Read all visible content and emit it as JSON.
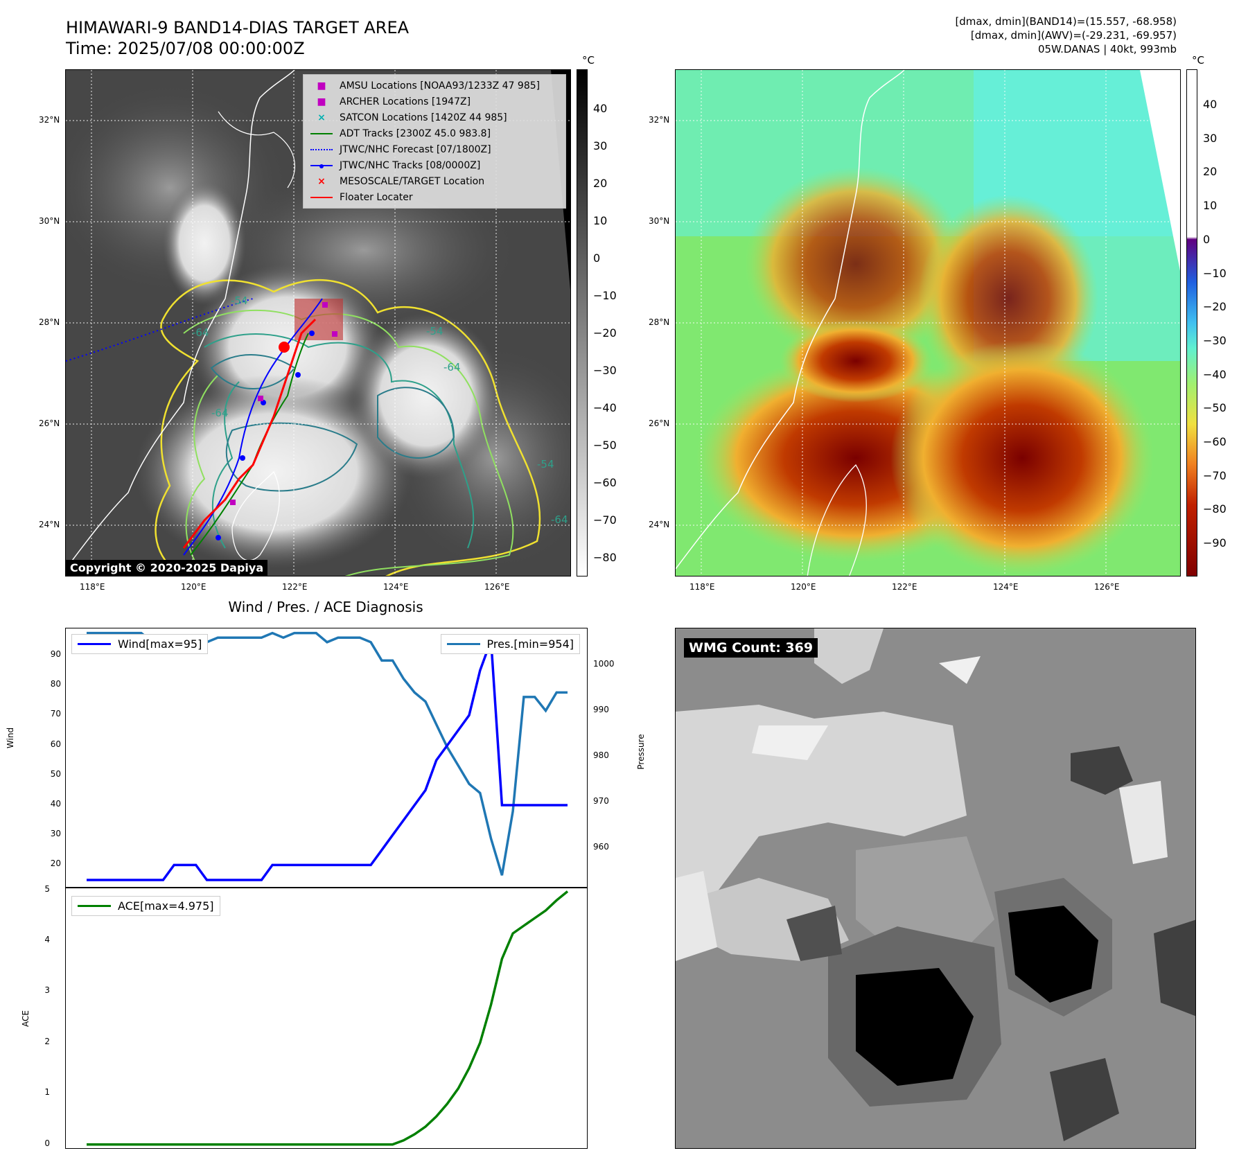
{
  "header": {
    "title_line1": "HIMAWARI-9 BAND14-DIAS TARGET AREA",
    "title_line2": "Time: 2025/07/08 00:00:00Z",
    "info_line1": "[dmax, dmin](BAND14)=(15.557, -68.958)",
    "info_line2": "[dmax, dmin](AWV)=(-29.231, -69.957)",
    "info_line3": "05W.DANAS | 40kt, 993mb"
  },
  "map_axes": {
    "lat_labels": [
      "32°N",
      "30°N",
      "28°N",
      "26°N",
      "24°N"
    ],
    "lon_labels": [
      "118°E",
      "120°E",
      "122°E",
      "124°E",
      "126°E"
    ]
  },
  "ir_panel": {
    "legend": [
      {
        "label": "AMSU Locations [NOAA93/1233Z 47 985]",
        "symbol": "square",
        "color": "#c000c0"
      },
      {
        "label": "ARCHER Locations [1947Z]",
        "symbol": "square",
        "color": "#c000c0"
      },
      {
        "label": "SATCON Locations [1420Z 44 985]",
        "symbol": "x",
        "color": "#00b0b0"
      },
      {
        "label": "ADT Tracks [2300Z 45.0 983.8]",
        "symbol": "line",
        "color": "#008000"
      },
      {
        "label": "JTWC/NHC Forecast [07/1800Z]",
        "symbol": "dotted",
        "color": "#0000ff"
      },
      {
        "label": "JTWC/NHC Tracks [08/0000Z]",
        "symbol": "line-dot",
        "color": "#0000ff"
      },
      {
        "label": "MESOSCALE/TARGET Location",
        "symbol": "x",
        "color": "#ff0000"
      },
      {
        "label": "Floater Locater",
        "symbol": "line",
        "color": "#ff0000"
      }
    ],
    "contour_labels": [
      "-54",
      "-64",
      "-54",
      "-64",
      "-64",
      "-54",
      "-64"
    ],
    "copyright": "Copyright © 2020-2025 Dapiya",
    "colorbar_unit": "°C",
    "colorbar_ticks": [
      "40",
      "30",
      "20",
      "10",
      "0",
      "−10",
      "−20",
      "−30",
      "−40",
      "−50",
      "−60",
      "−70",
      "−80"
    ]
  },
  "wv_panel": {
    "colorbar_unit": "°C",
    "colorbar_ticks": [
      "40",
      "30",
      "20",
      "10",
      "0",
      "−10",
      "−20",
      "−30",
      "−40",
      "−50",
      "−60",
      "−70",
      "−80",
      "−90"
    ]
  },
  "chart_data": [
    {
      "type": "line",
      "title": "Wind / Pres. / ACE Diagnosis",
      "ylabel": "Wind",
      "ylabel_right": "Pressure",
      "ylim": [
        12,
        99
      ],
      "ylim_right": [
        951,
        1008
      ],
      "yticks": [
        "90",
        "80",
        "70",
        "60",
        "50",
        "40",
        "30",
        "20"
      ],
      "yticks_right": [
        "1000",
        "990",
        "980",
        "970",
        "960"
      ],
      "series": [
        {
          "name": "Wind[max=95]",
          "axis": "left",
          "color": "#0000ff",
          "values": [
            15,
            15,
            15,
            15,
            15,
            15,
            15,
            15,
            20,
            20,
            20,
            15,
            15,
            15,
            15,
            15,
            15,
            20,
            20,
            20,
            20,
            20,
            20,
            20,
            20,
            20,
            20,
            25,
            30,
            35,
            40,
            45,
            55,
            60,
            65,
            70,
            85,
            95,
            40,
            40,
            40,
            40,
            40,
            40,
            40
          ]
        },
        {
          "name": "Pres.[min=954]",
          "axis": "right",
          "color": "#1f77b4",
          "values": [
            1007,
            1007,
            1007,
            1007,
            1007,
            1007,
            1005,
            1005,
            1005,
            1005,
            1005,
            1005,
            1006,
            1006,
            1006,
            1006,
            1006,
            1007,
            1006,
            1007,
            1007,
            1007,
            1005,
            1006,
            1006,
            1006,
            1005,
            1001,
            1001,
            997,
            994,
            992,
            987,
            982,
            978,
            974,
            972,
            962,
            954,
            968,
            993,
            993,
            990,
            994,
            994
          ]
        }
      ]
    },
    {
      "type": "line",
      "ylabel": "ACE",
      "ylim": [
        -0.1,
        5.05
      ],
      "yticks": [
        "5",
        "4",
        "3",
        "2",
        "1",
        "0"
      ],
      "series": [
        {
          "name": "ACE[max=4.975]",
          "color": "#008000",
          "values": [
            0,
            0,
            0,
            0,
            0,
            0,
            0,
            0,
            0,
            0,
            0,
            0,
            0,
            0,
            0,
            0,
            0,
            0,
            0,
            0,
            0,
            0,
            0,
            0,
            0,
            0,
            0,
            0,
            0,
            0.08,
            0.2,
            0.35,
            0.55,
            0.8,
            1.1,
            1.5,
            2.0,
            2.75,
            3.65,
            4.15,
            4.3,
            4.45,
            4.6,
            4.8,
            4.975
          ]
        }
      ]
    }
  ],
  "wmg_panel": {
    "label": "WMG Count: 369"
  }
}
